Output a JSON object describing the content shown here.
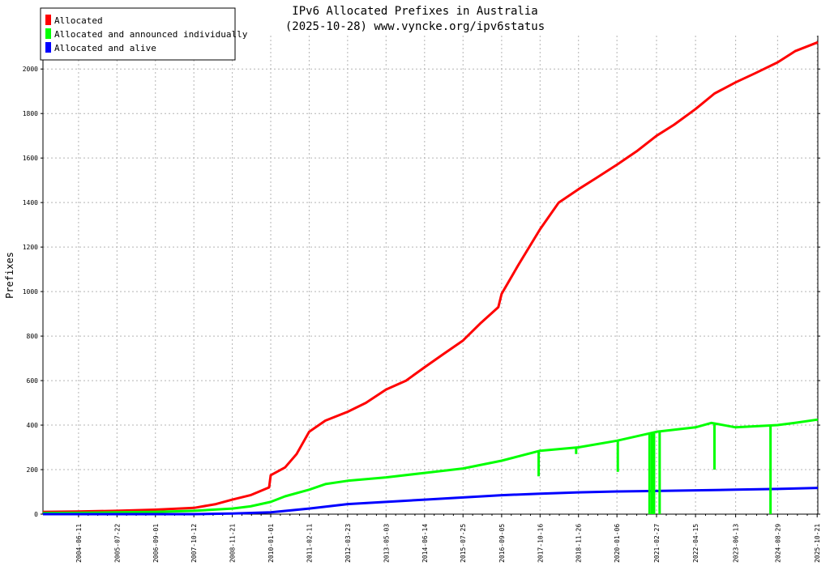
{
  "chart_data": {
    "type": "line",
    "title": "IPv6 Allocated Prefixes in Australia",
    "subtitle": "(2025-10-28) www.vyncke.org/ipv6status",
    "xlabel": "",
    "ylabel": "Prefixes",
    "ylim": [
      0,
      2150
    ],
    "x_range": [
      "2003-06-01",
      "2025-10-28"
    ],
    "y_ticks": [
      0,
      200,
      400,
      600,
      800,
      1000,
      1200,
      1400,
      1600,
      1800,
      2000
    ],
    "x_ticks": [
      "2004-06-11",
      "2005-07-22",
      "2006-09-01",
      "2007-10-12",
      "2008-11-21",
      "2010-01-01",
      "2011-02-11",
      "2012-03-23",
      "2013-05-03",
      "2014-06-14",
      "2015-07-25",
      "2016-09-05",
      "2017-10-16",
      "2018-11-26",
      "2020-01-06",
      "2021-02-27",
      "2022-04-15",
      "2023-06-13",
      "2024-08-29",
      "2025-10-21"
    ],
    "grid": true,
    "legend_position": "top-left",
    "series": [
      {
        "name": "Allocated",
        "color": "#ff0000",
        "x": [
          "2003-06-01",
          "2004-06-11",
          "2005-07-22",
          "2006-09-01",
          "2007-10-12",
          "2008-06-01",
          "2008-11-21",
          "2009-06-01",
          "2009-12-15",
          "2010-01-01",
          "2010-06-01",
          "2010-10-01",
          "2011-02-11",
          "2011-08-01",
          "2012-03-23",
          "2012-10-01",
          "2013-05-03",
          "2013-12-01",
          "2014-06-14",
          "2015-01-01",
          "2015-07-25",
          "2016-02-01",
          "2016-08-01",
          "2016-09-05",
          "2017-03-01",
          "2017-10-16",
          "2018-05-01",
          "2018-11-26",
          "2019-06-01",
          "2020-01-06",
          "2020-08-01",
          "2021-02-27",
          "2021-09-01",
          "2022-04-15",
          "2022-11-01",
          "2023-06-13",
          "2024-01-01",
          "2024-08-29",
          "2025-03-01",
          "2025-10-28"
        ],
        "values": [
          10,
          12,
          15,
          20,
          28,
          45,
          65,
          85,
          120,
          175,
          210,
          270,
          370,
          420,
          460,
          500,
          560,
          600,
          660,
          720,
          780,
          860,
          930,
          990,
          1120,
          1280,
          1400,
          1460,
          1510,
          1570,
          1630,
          1700,
          1750,
          1820,
          1890,
          1940,
          1980,
          2030,
          2080,
          2120
        ]
      },
      {
        "name": "Allocated and announced individually",
        "color": "#00ff00",
        "x": [
          "2003-06-01",
          "2004-06-11",
          "2005-07-22",
          "2006-09-01",
          "2007-10-12",
          "2008-11-21",
          "2009-06-01",
          "2010-01-01",
          "2010-06-01",
          "2011-02-11",
          "2011-08-01",
          "2012-03-23",
          "2013-05-03",
          "2014-06-14",
          "2015-07-25",
          "2016-09-05",
          "2017-10-16",
          "2018-11-26",
          "2020-01-06",
          "2021-02-27",
          "2022-04-15",
          "2022-10-01",
          "2023-06-13",
          "2024-08-29",
          "2025-03-01",
          "2025-10-28"
        ],
        "values": [
          5,
          6,
          8,
          10,
          15,
          25,
          35,
          55,
          80,
          110,
          135,
          150,
          165,
          185,
          205,
          240,
          285,
          300,
          330,
          370,
          390,
          410,
          390,
          400,
          410,
          425
        ]
      },
      {
        "name": "Allocated and alive",
        "color": "#0000ff",
        "x": [
          "2003-06-01",
          "2007-10-12",
          "2008-11-21",
          "2010-01-01",
          "2011-02-11",
          "2012-03-23",
          "2013-05-03",
          "2014-06-14",
          "2015-07-25",
          "2016-09-05",
          "2017-10-16",
          "2018-11-26",
          "2020-01-06",
          "2021-02-27",
          "2022-04-15",
          "2023-06-13",
          "2024-08-29",
          "2025-10-28"
        ],
        "values": [
          0,
          0,
          3,
          8,
          25,
          45,
          55,
          65,
          75,
          85,
          92,
          98,
          102,
          104,
          107,
          110,
          113,
          118
        ]
      }
    ],
    "green_dips": [
      {
        "x": "2017-10-01",
        "value": 170
      },
      {
        "x": "2018-11-01",
        "value": 270
      },
      {
        "x": "2020-01-15",
        "value": 190
      },
      {
        "x": "2020-12-15",
        "value": 0
      },
      {
        "x": "2021-01-10",
        "value": 0
      },
      {
        "x": "2021-02-01",
        "value": 0
      },
      {
        "x": "2021-04-01",
        "value": 0
      },
      {
        "x": "2022-11-01",
        "value": 200
      },
      {
        "x": "2024-06-15",
        "value": 0
      }
    ]
  }
}
